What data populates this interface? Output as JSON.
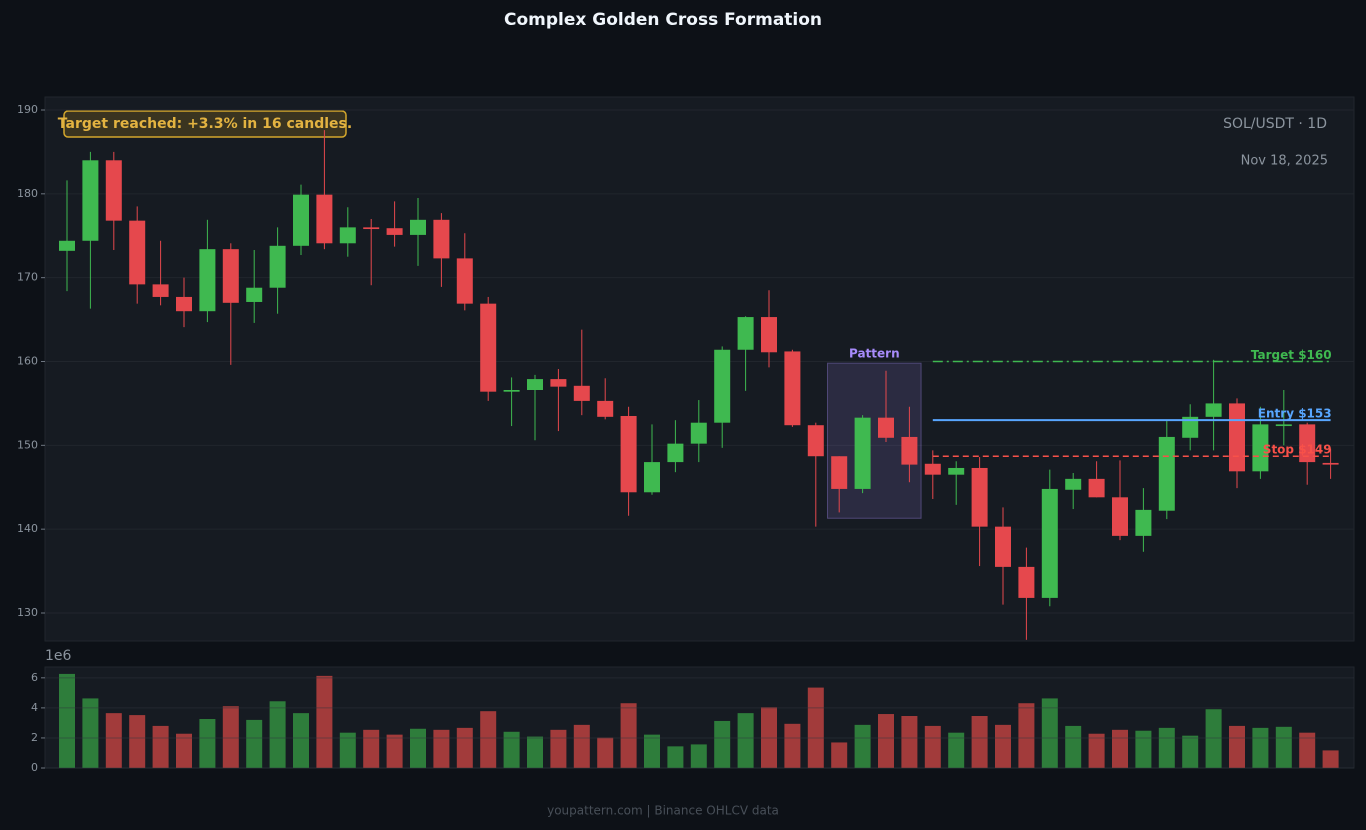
{
  "chart_data": [
    {
      "type": "candlestick",
      "title": "Complex Golden Cross Formation",
      "symbol": "SOL/USDT · 1D",
      "date": "Nov 18, 2025",
      "annotation": "Target reached: +3.3% in 16 candles.",
      "up_color": "#3fb950",
      "down_color": "#e5484d",
      "open": [
        173.2,
        174.4,
        184.0,
        176.8,
        169.2,
        167.7,
        166.0,
        173.4,
        167.1,
        168.8,
        173.8,
        179.9,
        174.1,
        176.0,
        175.9,
        175.1,
        176.9,
        172.3,
        166.9,
        156.4,
        156.6,
        157.9,
        157.1,
        155.3,
        153.5,
        144.4,
        148.0,
        150.2,
        152.7,
        161.4,
        165.3,
        161.2,
        152.4,
        148.7,
        144.8,
        153.3,
        151.0,
        147.8,
        146.5,
        147.3,
        140.3,
        135.5,
        131.8,
        144.7,
        146.0,
        143.8,
        139.2,
        142.2,
        150.9,
        153.4,
        155.0,
        146.9,
        152.3,
        152.5,
        147.9
      ],
      "high": [
        181.6,
        185.0,
        185.0,
        178.5,
        174.4,
        170.0,
        176.9,
        174.1,
        173.3,
        176.0,
        181.1,
        187.6,
        178.4,
        177.0,
        179.1,
        179.5,
        177.7,
        175.3,
        167.7,
        158.1,
        158.4,
        159.1,
        163.8,
        158.0,
        154.6,
        152.5,
        153.0,
        155.4,
        161.8,
        165.4,
        168.5,
        161.4,
        152.7,
        148.7,
        153.6,
        158.9,
        154.6,
        149.4,
        148.1,
        148.6,
        142.6,
        137.8,
        147.1,
        146.7,
        148.1,
        148.2,
        144.9,
        153.0,
        154.9,
        160.2,
        155.6,
        154.6,
        156.6,
        152.7,
        149.6
      ],
      "low": [
        168.4,
        166.3,
        173.3,
        166.9,
        166.7,
        164.1,
        164.7,
        159.6,
        164.6,
        165.7,
        172.7,
        173.4,
        172.5,
        169.1,
        173.7,
        171.4,
        168.9,
        166.1,
        155.3,
        152.3,
        150.6,
        151.7,
        153.6,
        153.1,
        141.6,
        144.1,
        146.8,
        148.0,
        149.7,
        156.5,
        159.3,
        152.2,
        140.3,
        142.0,
        144.3,
        150.4,
        145.6,
        143.6,
        142.9,
        135.6,
        131.0,
        126.8,
        130.8,
        142.4,
        143.8,
        138.7,
        137.3,
        141.2,
        149.4,
        149.4,
        144.9,
        146.0,
        150.0,
        145.3,
        146.0
      ],
      "close": [
        174.4,
        184.0,
        176.8,
        169.2,
        167.7,
        166.0,
        173.4,
        167.0,
        168.8,
        173.8,
        179.9,
        174.1,
        176.0,
        175.8,
        175.1,
        176.9,
        172.3,
        166.9,
        156.4,
        156.6,
        157.9,
        157.0,
        155.3,
        153.4,
        144.4,
        148.0,
        150.2,
        152.7,
        161.4,
        165.3,
        161.1,
        152.4,
        148.7,
        144.8,
        153.3,
        150.9,
        147.7,
        146.5,
        147.3,
        140.3,
        135.5,
        131.8,
        144.8,
        146.0,
        143.8,
        139.2,
        142.3,
        151.0,
        153.4,
        155.0,
        146.9,
        152.5,
        152.5,
        148.0,
        147.7
      ],
      "ylim": [
        126.66,
        191.55
      ],
      "yticks": [
        130,
        140,
        150,
        160,
        170,
        180,
        190
      ],
      "grid": true,
      "pattern": {
        "label": "Pattern",
        "start": 32.5,
        "end": 36.5,
        "low": 141.3,
        "high": 159.8,
        "color": "#a78bfa"
      },
      "levels": [
        {
          "name": "Target $160",
          "value": 160,
          "start": 37,
          "end": 54,
          "color": "#3fb950",
          "style": "dashdot"
        },
        {
          "name": "Entry $153",
          "value": 153,
          "start": 37,
          "end": 54,
          "color": "#58a6ff",
          "style": "solid"
        },
        {
          "name": "Stop $149",
          "value": 148.7,
          "start": 37,
          "end": 54,
          "color": "#f85149",
          "style": "dashed"
        }
      ]
    },
    {
      "type": "bar",
      "offset_label": "1e6",
      "up_color": "#2e7d3b",
      "down_color": "#a23b3b",
      "values": [
        6.26,
        4.63,
        3.65,
        3.52,
        2.8,
        2.28,
        3.26,
        4.11,
        3.2,
        4.44,
        3.65,
        6.13,
        2.35,
        2.54,
        2.22,
        2.61,
        2.54,
        2.67,
        3.78,
        2.41,
        2.09,
        2.54,
        2.87,
        2.02,
        4.31,
        2.22,
        1.44,
        1.57,
        3.13,
        3.65,
        4.04,
        2.94,
        5.35,
        1.7,
        2.87,
        3.59,
        3.46,
        2.8,
        2.35,
        3.46,
        2.87,
        4.31,
        4.63,
        2.8,
        2.28,
        2.54,
        2.48,
        2.67,
        2.15,
        3.91,
        2.8,
        2.67,
        2.74,
        2.35,
        1.17
      ],
      "ylim": [
        0,
        6.72
      ],
      "yticks": [
        0,
        2,
        4,
        6
      ],
      "grid": true
    }
  ],
  "footer": {
    "text": "youpattern.com | Binance OHLCV data"
  }
}
